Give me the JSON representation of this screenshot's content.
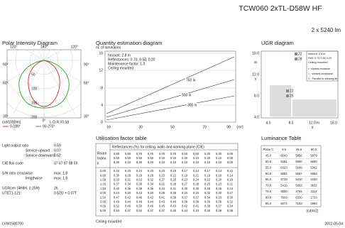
{
  "header": {
    "title": "TCW060 2xTL-D58W HF",
    "lamps": "2 x 5240 lm"
  },
  "polar": {
    "title": "Polar Intensity Diagram",
    "angle_labels": [
      "120°",
      "180°",
      "120°",
      "90°",
      "90°",
      "60°",
      "60°",
      "30°",
      "0°",
      "30°"
    ],
    "radial_labels": [
      "50",
      "100",
      "150",
      "200"
    ],
    "unit": "(cd/1000lm)",
    "lor": "L.O.R.=0.59",
    "legend": [
      "0-180°",
      "90-270°"
    ]
  },
  "quantity": {
    "title": "Quantity estimation diagram",
    "ylabel": "nr. of luminaires",
    "notes": [
      "hmount: 2.8 m",
      "Reflectances: 0.70, 0.50, 0.20",
      "Maintenance factor: 1.0",
      "Ceiling mounted"
    ],
    "yticks": [
      "16",
      "12",
      "8",
      "4",
      "0"
    ],
    "xticks": [
      "10",
      "30",
      "50",
      "70",
      "90",
      "(m²)"
    ],
    "curves": [
      "750 lx",
      "500 lx",
      "300 lx"
    ]
  },
  "ugr": {
    "title": "UGR diagram",
    "yticks": [
      "16.0",
      "12.0",
      "8.0",
      "4.0"
    ],
    "yunit": "m",
    "ylabel": "Y",
    "xticks": [
      "4.0",
      "8.0",
      "12.0",
      "m",
      "16.0"
    ],
    "xlabel": "X",
    "legend": [
      "22",
      "28",
      "22",
      "25"
    ],
    "notes": [
      "hmount: 2.8 m",
      "Refl: 0.70 0.50 0.20",
      "Ceiling mounted",
      "I : viewed endwise",
      "= : viewed crosswise",
      "Y : Parallel to viewing dir"
    ]
  },
  "properties": [
    [
      "Light output ratio",
      "0.59"
    ],
    [
      "Service upward",
      "0.07"
    ],
    [
      "Service downward",
      "0.52"
    ],
    [
      "CIE flux code",
      "37 67 87 88 59"
    ],
    [
      "S/H ratio crosswise",
      "max. 1.8"
    ],
    [
      "lengthwise",
      "max. 1.8"
    ],
    [
      "UGRcen (4H8H, 0.25H)",
      "26"
    ],
    [
      "UTE71-121:",
      "0.52G + 0.07T"
    ]
  ],
  "utilisation": {
    "title": "Utilisation factor table",
    "header": "Reflectances (%) for ceiling, walls and working plane (CIE)",
    "row_label": [
      "Room",
      "Index",
      "k"
    ],
    "reflectances": [
      [
        "0.80",
        "0.80",
        "0.70",
        "0.70",
        "0.70",
        "0.70",
        "0.50",
        "0.50",
        "0.30",
        "0.30",
        "0.00"
      ],
      [
        "0.50",
        "0.50",
        "0.50",
        "0.50",
        "0.30",
        "0.30",
        "0.30",
        "0.10",
        "0.30",
        "0.10",
        "0.00"
      ],
      [
        "0.30",
        "0.10",
        "0.30",
        "0.20",
        "0.10",
        "0.10",
        "0.10",
        "0.10",
        "0.10",
        "0.10",
        "0.00"
      ]
    ],
    "rows": [
      [
        "0.60",
        "0.24",
        "0.23",
        "0.24",
        "0.23",
        "0.23",
        "0.19",
        "0.17",
        "0.14",
        "0.17",
        "0.14",
        "0.12"
      ],
      [
        "0.80",
        "0.30",
        "0.28",
        "0.29",
        "0.28",
        "0.23",
        "0.22",
        "0.19",
        "0.21",
        "0.19",
        "0.16",
        "0.14"
      ],
      [
        "1.00",
        "0.33",
        "0.31",
        "0.33",
        "0.32",
        "0.27",
        "0.25",
        "0.23",
        "0.24",
        "0.22",
        "0.20",
        "0.18"
      ],
      [
        "1.25",
        "0.37",
        "0.34",
        "0.36",
        "0.34",
        "0.31",
        "0.28",
        "0.27",
        "0.28",
        "0.25",
        "0.23",
        "0.21"
      ],
      [
        "1.50",
        "0.40",
        "0.36",
        "0.39",
        "0.36",
        "0.34",
        "0.31",
        "0.30",
        "0.30",
        "0.28",
        "0.26",
        "0.24"
      ],
      [
        "2.00",
        "0.44",
        "0.40",
        "0.43",
        "0.40",
        "0.38",
        "0.35",
        "0.34",
        "0.34",
        "0.32",
        "0.30",
        "0.27"
      ],
      [
        "2.50",
        "0.47",
        "0.42",
        "0.46",
        "0.42",
        "0.41",
        "0.38",
        "0.37",
        "0.37",
        "0.34",
        "0.33",
        "0.30"
      ],
      [
        "3.00",
        "0.49",
        "0.44",
        "0.48",
        "0.44",
        "0.43",
        "0.40",
        "0.39",
        "0.39",
        "0.36",
        "0.35",
        "0.32"
      ],
      [
        "4.00",
        "0.52",
        "0.46",
        "0.50",
        "0.46",
        "0.45",
        "0.43",
        "0.42",
        "0.41",
        "0.38",
        "0.37",
        "0.34"
      ],
      [
        "5.00",
        "0.53",
        "0.47",
        "0.52",
        "0.47",
        "0.47",
        "0.45",
        "0.44",
        "0.43",
        "0.40",
        "0.39",
        "0.36"
      ]
    ],
    "footer": "Ceiling mounted"
  },
  "luminance": {
    "title": "Luminance Table",
    "header": [
      "Plane C",
      "0.0",
      "45.0",
      "90.0"
    ],
    "rows": [
      [
        "45.0",
        "6543",
        "5856",
        "5879"
      ],
      [
        "50.0",
        "6461",
        "5880",
        "5660"
      ],
      [
        "55.0",
        "6323",
        "5649",
        "5362"
      ],
      [
        "60.0",
        "6062",
        "5557",
        "4866"
      ],
      [
        "65.0",
        "5719",
        "5410",
        "4430"
      ],
      [
        "70.0",
        "5416",
        "5063",
        "3832"
      ],
      [
        "75.0",
        "5000",
        "4765",
        "3113"
      ],
      [
        "80.0",
        "7603",
        "6330",
        "1723"
      ],
      [
        "85.0",
        "8074",
        "7153",
        "2860"
      ]
    ],
    "unit": "(cd/m2)"
  },
  "footer": {
    "code": "LVW1580700",
    "date": "2012-05-04"
  }
}
